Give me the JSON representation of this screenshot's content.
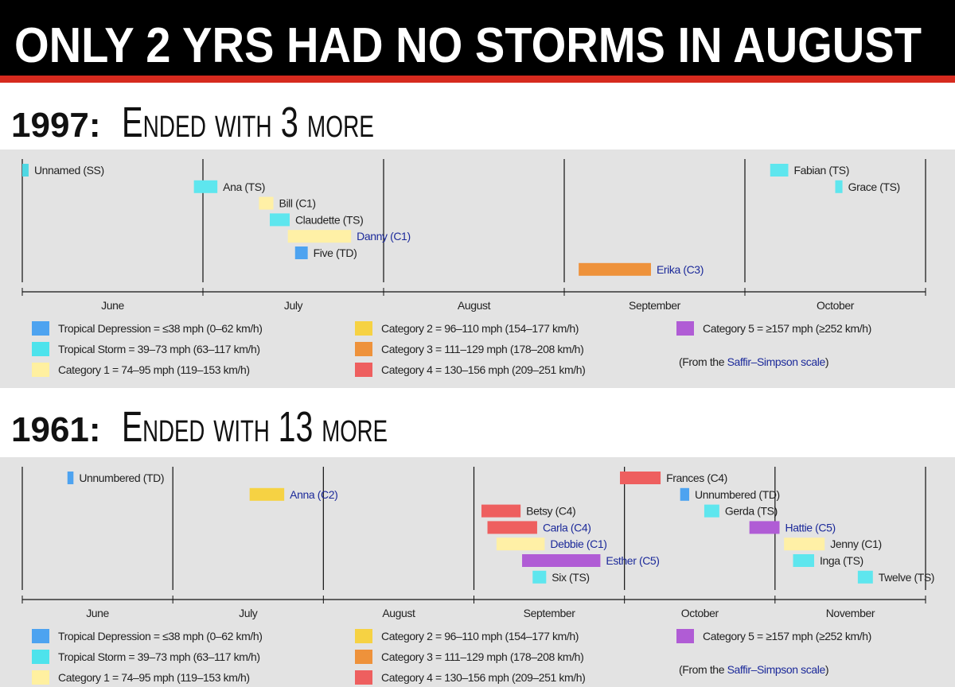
{
  "title": "ONLY 2 YRS HAD NO STORMS IN AUGUST",
  "chart_data": [
    {
      "type": "timeline",
      "title": "1997:",
      "subtitle": "Ended with 3 more",
      "categories": [
        "June",
        "July",
        "August",
        "September",
        "October"
      ],
      "xlim": [
        0,
        5
      ],
      "grid": true,
      "storms": [
        {
          "name": "Unnamed (SS)",
          "color": "#4fd8e3",
          "label_color": "#222222",
          "start": 0.0,
          "end": 0.035
        },
        {
          "name": "Ana (TS)",
          "color": "#5ee6ee",
          "label_color": "#222222",
          "start": 0.95,
          "end": 1.08
        },
        {
          "name": "Bill (C1)",
          "color": "#fff0a6",
          "label_color": "#222222",
          "start": 1.31,
          "end": 1.39
        },
        {
          "name": "Claudette (TS)",
          "color": "#5ee6ee",
          "label_color": "#222222",
          "start": 1.37,
          "end": 1.48
        },
        {
          "name": "Danny (C1)",
          "color": "#fff0a6",
          "label_color": "#1c2a9a",
          "start": 1.47,
          "end": 1.82
        },
        {
          "name": "Five (TD)",
          "color": "#4da3f0",
          "label_color": "#222222",
          "start": 1.51,
          "end": 1.58
        },
        {
          "name": "Erika (C3)",
          "color": "#ee923b",
          "label_color": "#1c2a9a",
          "start": 3.08,
          "end": 3.48
        },
        {
          "name": "Fabian (TS)",
          "color": "#5ee6ee",
          "label_color": "#222222",
          "start": 4.14,
          "end": 4.24
        },
        {
          "name": "Grace (TS)",
          "color": "#5ee6ee",
          "label_color": "#222222",
          "start": 4.5,
          "end": 4.54
        }
      ],
      "legend": [
        {
          "label": "Tropical Depression = ≤38 mph (0–62 km/h)",
          "color": "#4da3f0"
        },
        {
          "label": "Tropical Storm = 39–73 mph (63–117 km/h)",
          "color": "#4de3ec"
        },
        {
          "label": "Category 1 = 74–95 mph (119–153 km/h)",
          "color": "#fff0a0"
        },
        {
          "label": "Category 2 = 96–110 mph (154–177 km/h)",
          "color": "#f6d243"
        },
        {
          "label": "Category 3 = 111–129 mph (178–208 km/h)",
          "color": "#ee923b"
        },
        {
          "label": "Category 4 = 130–156 mph (209–251 km/h)",
          "color": "#ee5f5f"
        },
        {
          "label": "Category 5 = ≥157 mph (≥252 km/h)",
          "color": "#b05cd5"
        }
      ],
      "note": {
        "prefix": "(From the",
        "link": "Saffir–Simpson scale",
        "suffix": ")"
      }
    },
    {
      "type": "timeline",
      "title": "1961:",
      "subtitle": "Ended with 13 more",
      "categories": [
        "June",
        "July",
        "August",
        "September",
        "October",
        "November"
      ],
      "xlim": [
        0,
        6
      ],
      "grid": true,
      "storms": [
        {
          "name": "Unnumbered (TD)",
          "color": "#4da3f0",
          "label_color": "#222222",
          "start": 0.3,
          "end": 0.34
        },
        {
          "name": "Anna (C2)",
          "color": "#f6d243",
          "label_color": "#1c2a9a",
          "start": 1.51,
          "end": 1.74
        },
        {
          "name": "Betsy (C4)",
          "color": "#ee5f5f",
          "label_color": "#222222",
          "start": 3.05,
          "end": 3.31
        },
        {
          "name": "Carla (C4)",
          "color": "#ee5f5f",
          "label_color": "#1c2a9a",
          "start": 3.09,
          "end": 3.42
        },
        {
          "name": "Debbie (C1)",
          "color": "#fff0a6",
          "label_color": "#1c2a9a",
          "start": 3.15,
          "end": 3.47
        },
        {
          "name": "Esther (C5)",
          "color": "#b05cd5",
          "label_color": "#1c2a9a",
          "start": 3.32,
          "end": 3.84
        },
        {
          "name": "Six (TS)",
          "color": "#5ee6ee",
          "label_color": "#222222",
          "start": 3.39,
          "end": 3.48
        },
        {
          "name": "Frances (C4)",
          "color": "#ee5f5f",
          "label_color": "#222222",
          "start": 3.97,
          "end": 4.24
        },
        {
          "name": "Unnumbered (TD)",
          "color": "#4da3f0",
          "label_color": "#222222",
          "start": 4.37,
          "end": 4.43
        },
        {
          "name": "Gerda (TS)",
          "color": "#5ee6ee",
          "label_color": "#222222",
          "start": 4.53,
          "end": 4.63
        },
        {
          "name": "Hattie (C5)",
          "color": "#b05cd5",
          "label_color": "#1c2a9a",
          "start": 4.83,
          "end": 5.03
        },
        {
          "name": "Jenny (C1)",
          "color": "#fff0a6",
          "label_color": "#222222",
          "start": 5.06,
          "end": 5.33
        },
        {
          "name": "Inga (TS)",
          "color": "#5ee6ee",
          "label_color": "#222222",
          "start": 5.12,
          "end": 5.26
        },
        {
          "name": "Twelve (TS)",
          "color": "#5ee6ee",
          "label_color": "#222222",
          "start": 5.55,
          "end": 5.65
        }
      ],
      "legend": [
        {
          "label": "Tropical Depression = ≤38 mph (0–62 km/h)",
          "color": "#4da3f0"
        },
        {
          "label": "Tropical Storm = 39–73 mph (63–117 km/h)",
          "color": "#4de3ec"
        },
        {
          "label": "Category 1 = 74–95 mph (119–153 km/h)",
          "color": "#fff0a0"
        },
        {
          "label": "Category 2 = 96–110 mph (154–177 km/h)",
          "color": "#f6d243"
        },
        {
          "label": "Category 3 = 111–129 mph (178–208 km/h)",
          "color": "#ee923b"
        },
        {
          "label": "Category 4 = 130–156 mph (209–251 km/h)",
          "color": "#ee5f5f"
        },
        {
          "label": "Category 5 = ≥157 mph (≥252 km/h)",
          "color": "#b05cd5"
        }
      ],
      "note": {
        "prefix": "(From the",
        "link": "Saffir–Simpson scale",
        "suffix": ")"
      }
    }
  ]
}
